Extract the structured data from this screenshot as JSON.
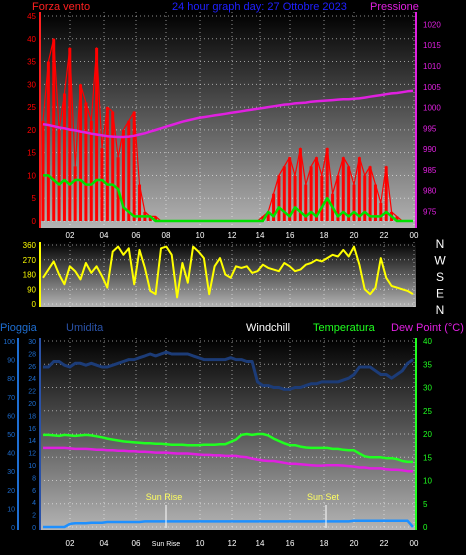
{
  "chart_data": [
    {
      "type": "line",
      "header": {
        "left": "Forza vento",
        "center": "24 hour graph day: 27 Ottobre 2023",
        "right": "Pressione"
      },
      "colors": {
        "wind": "#ff0000",
        "gust": "#00e000",
        "pressure": "#e020e0",
        "header_left": "#ff2020",
        "header_center": "#2020ff",
        "header_right": "#e020e0"
      },
      "x_ticks": [
        "02",
        "04",
        "06",
        "08",
        "10",
        "12",
        "14",
        "16",
        "18",
        "20",
        "22",
        "00"
      ],
      "y_left_ticks": [
        0,
        5,
        10,
        15,
        20,
        25,
        30,
        35,
        40,
        45
      ],
      "y_left_range": [
        0,
        45
      ],
      "y_right_ticks": [
        975,
        980,
        985,
        990,
        995,
        1000,
        1005,
        1010,
        1015,
        1020
      ],
      "y_right_range": [
        971,
        1023
      ],
      "series": [
        {
          "key": "wind",
          "values": [
            22,
            35,
            40,
            20,
            28,
            38,
            12,
            30,
            26,
            22,
            38,
            16,
            25,
            24,
            14,
            20,
            22,
            24,
            8,
            2,
            1,
            1,
            0,
            0,
            0,
            0,
            0,
            0,
            0,
            0,
            0,
            0,
            0,
            0,
            0,
            0,
            0,
            0,
            0,
            0,
            0,
            1,
            2,
            6,
            10,
            12,
            14,
            10,
            16,
            8,
            12,
            14,
            10,
            16,
            6,
            10,
            14,
            12,
            8,
            14,
            10,
            12,
            8,
            4,
            12,
            2,
            1,
            0,
            0,
            0
          ]
        },
        {
          "key": "gust",
          "values": [
            10,
            10,
            9,
            8,
            9,
            8,
            9,
            9,
            8,
            8,
            9,
            9,
            8,
            8,
            7,
            3,
            2,
            1,
            1,
            1,
            1,
            0,
            0,
            0,
            0,
            0,
            0,
            0,
            0,
            0,
            0,
            0,
            0,
            0,
            0,
            0,
            0,
            0,
            0,
            0,
            0,
            0,
            2,
            1,
            3,
            2,
            1,
            3,
            2,
            1,
            2,
            1,
            3,
            5,
            3,
            1,
            2,
            1,
            2,
            1,
            2,
            1,
            1,
            1,
            2,
            1,
            0,
            0,
            0,
            0
          ]
        },
        {
          "key": "pressure",
          "values": [
            996,
            995.8,
            995.5,
            995.2,
            995,
            994.7,
            994.5,
            994.2,
            994,
            993.7,
            993.5,
            993.3,
            993.1,
            993,
            992.9,
            992.9,
            993,
            993.2,
            993.5,
            993.8,
            994.2,
            994.6,
            995,
            995.4,
            995.8,
            996.2,
            996.6,
            996.9,
            997.2,
            997.5,
            997.7,
            997.9,
            998.1,
            998.3,
            998.5,
            998.7,
            998.9,
            999.1,
            999.3,
            999.5,
            999.7,
            999.9,
            1000.1,
            1000.3,
            1000.5,
            1000.7,
            1000.8,
            1001,
            1001.1,
            1001.2,
            1001.4,
            1001.5,
            1001.6,
            1001.7,
            1001.8,
            1001.9,
            1002,
            1002,
            1002.1,
            1002.2,
            1002.4,
            1002.6,
            1002.8,
            1003,
            1003.2,
            1003.4,
            1003.5,
            1003.7,
            1003.9,
            1004
          ]
        }
      ]
    },
    {
      "type": "line",
      "y_right_labels": [
        "N",
        "W",
        "S",
        "E",
        "N"
      ],
      "y_left_ticks": [
        0,
        90,
        180,
        270,
        360
      ],
      "y_left_range": [
        0,
        360
      ],
      "colors": {
        "direction": "#ffff00"
      },
      "series": [
        {
          "key": "direction",
          "values": [
            160,
            210,
            260,
            180,
            120,
            230,
            200,
            150,
            250,
            190,
            230,
            170,
            100,
            320,
            350,
            300,
            340,
            120,
            330,
            220,
            80,
            60,
            340,
            350,
            300,
            40,
            250,
            130,
            350,
            320,
            280,
            60,
            230,
            280,
            180,
            160,
            230,
            220,
            230,
            190,
            200,
            240,
            220,
            210,
            200,
            250,
            230,
            200,
            210,
            240,
            250,
            270,
            260,
            280,
            300,
            290,
            330,
            290,
            350,
            240,
            90,
            60,
            100,
            280,
            160,
            110,
            100,
            90,
            80,
            60
          ]
        }
      ]
    },
    {
      "type": "line",
      "header": {
        "pioggia": "Pioggia",
        "umidita": "Umidita",
        "windchill": "Windchill",
        "temperatura": "Temperatura",
        "dewpoint": "Dew Point (°C)"
      },
      "colors": {
        "pioggia": "#1e6ed2",
        "umidita": "#2a52a8",
        "windchill": "#ffffff",
        "temperatura": "#20ff20",
        "dewpoint": "#e020e0",
        "humidity_line": "#1c3c78",
        "rain": "#1e90ff",
        "sun": "#ffff60"
      },
      "y_pioggia_ticks": [
        0,
        10,
        20,
        30,
        40,
        50,
        60,
        70,
        80,
        90,
        100
      ],
      "y_umidita_ticks": [
        0,
        2,
        4,
        6,
        8,
        10,
        12,
        14,
        16,
        18,
        20,
        22,
        24,
        26,
        28,
        30
      ],
      "y_temp_ticks": [
        0,
        5,
        10,
        15,
        20,
        25,
        30,
        35,
        40
      ],
      "temp_range": [
        0,
        40
      ],
      "humidity_range": [
        0,
        100
      ],
      "rain_range": [
        0,
        30
      ],
      "x_ticks": [
        "02",
        "04",
        "06",
        "Sun Rise",
        "10",
        "12",
        "14",
        "16",
        "18",
        "20",
        "22",
        "00"
      ],
      "annotations": {
        "sunrise": "Sun Rise",
        "sunset": "Sun Set"
      },
      "series": [
        {
          "key": "humidity",
          "values": [
            86,
            86,
            89,
            89,
            87,
            86,
            88,
            88,
            87,
            88,
            87,
            86,
            86,
            87,
            88,
            89,
            90,
            90,
            91,
            92,
            93,
            92,
            93,
            94,
            93,
            93,
            93,
            93,
            92,
            91,
            90,
            90,
            90,
            90,
            90,
            91,
            90,
            90,
            89,
            89,
            78,
            76,
            76,
            75,
            75,
            74,
            74,
            75,
            75,
            76,
            77,
            77,
            78,
            78,
            78,
            78,
            79,
            80,
            82,
            86,
            86,
            86,
            84,
            82,
            82,
            80,
            82,
            84,
            88,
            90
          ]
        },
        {
          "key": "temperature",
          "values": [
            19.8,
            19.8,
            19.7,
            19.6,
            19.8,
            19.7,
            19.6,
            19.7,
            19.8,
            19.7,
            19.5,
            19.3,
            19,
            18.8,
            18.6,
            18.4,
            18.3,
            18.2,
            18.1,
            18,
            18,
            17.9,
            17.9,
            17.8,
            17.7,
            17.7,
            17.7,
            17.6,
            17.6,
            17.6,
            17.7,
            17.7,
            17.7,
            17.8,
            17.8,
            18.3,
            18.8,
            19.8,
            20,
            19.8,
            20,
            20,
            19.7,
            19,
            18.5,
            18,
            17.6,
            17.6,
            17.3,
            17.1,
            17,
            17,
            17,
            17,
            16.8,
            16.8,
            16.6,
            16.5,
            16.5,
            15.8,
            15.2,
            15,
            15,
            15,
            14.8,
            14.8,
            14.6,
            14.2,
            14,
            14
          ]
        },
        {
          "key": "dewpoint",
          "values": [
            17,
            17,
            17,
            17,
            17,
            16.9,
            16.8,
            16.8,
            16.8,
            16.7,
            16.6,
            16.6,
            16.5,
            16.5,
            16.4,
            16.4,
            16.3,
            16.3,
            16.2,
            16.2,
            16.1,
            16,
            16,
            16,
            15.9,
            15.8,
            15.8,
            15.8,
            15.7,
            15.6,
            15.5,
            15.5,
            15.4,
            15.4,
            15.3,
            15.3,
            15.3,
            15.1,
            15,
            14.7,
            14.5,
            14.3,
            14.2,
            14.2,
            14,
            13.8,
            13.6,
            13.6,
            13.5,
            13.4,
            13.3,
            13.2,
            13.2,
            13.3,
            13.3,
            13.3,
            13.2,
            13.1,
            13,
            12.8,
            12.8,
            12.6,
            12.6,
            12.6,
            12.4,
            12.3,
            12.3,
            12.2,
            12,
            12
          ]
        },
        {
          "key": "rain",
          "values": [
            0,
            0,
            0,
            0,
            0,
            0.5,
            0.6,
            0.6,
            0.6,
            0.7,
            0.7,
            0.7,
            0.8,
            0.8,
            0.8,
            0.8,
            0.8,
            0.8,
            0.8,
            0.9,
            0.9,
            0.9,
            0.9,
            0.9,
            0.9,
            0.9,
            0.9,
            0.9,
            0.9,
            0.9,
            0.9,
            0.9,
            0.9,
            0.9,
            0.9,
            0.9,
            0.9,
            0.9,
            0.9,
            0.9,
            0.9,
            0.9,
            0.9,
            0.9,
            0.9,
            0.9,
            0.9,
            0.9,
            0.9,
            0.9,
            0.9,
            0.9,
            0.9,
            0.9,
            0.9,
            0.9,
            0.9,
            0.9,
            1,
            1,
            1,
            1,
            1,
            1,
            1,
            1,
            1,
            1,
            1,
            0
          ]
        }
      ]
    }
  ]
}
